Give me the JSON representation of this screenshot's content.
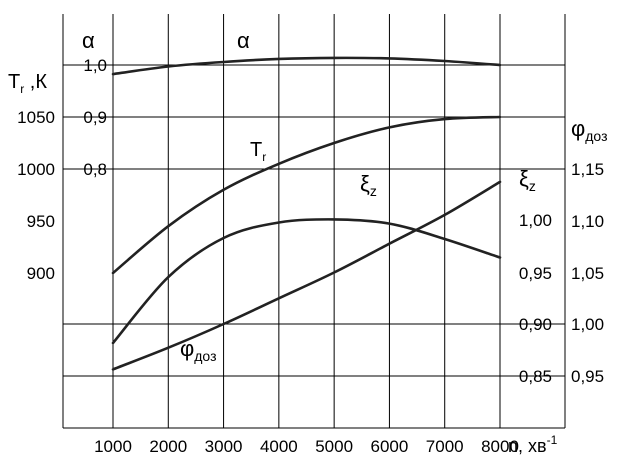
{
  "chart_data": {
    "type": "line",
    "xlabel": "n, хв",
    "xlabel_sup": "-1",
    "x_ticks": [
      "1000",
      "2000",
      "3000",
      "4000",
      "5000",
      "6000",
      "7000",
      "8000"
    ],
    "xlim": [
      0,
      8000
    ],
    "axes": {
      "Tr_label": "T",
      "Tr_label_sub": "r",
      "Tr_label_suffix": " ,К",
      "Tr_ticks": [
        "1050",
        "1000",
        "950",
        "900"
      ],
      "alpha_label": "α",
      "alpha_ticks": [
        "1,0",
        "0,9",
        "0,8"
      ],
      "xi_label": "ξ",
      "xi_label_sub": "z",
      "xi_ticks": [
        "1,00",
        "0,95",
        "0,90",
        "0,85"
      ],
      "phi_label": "φ",
      "phi_label_sub": "доз",
      "phi_ticks": [
        "1,15",
        "1,10",
        "1,05",
        "1,00",
        "0,95"
      ]
    },
    "series": [
      {
        "name": "α",
        "label_text": "α",
        "label_sub": "",
        "axis": "alpha",
        "x": [
          1000,
          2000,
          3000,
          4000,
          5000,
          6000,
          7000,
          8000
        ],
        "y": [
          0.982,
          0.997,
          1.006,
          1.012,
          1.014,
          1.013,
          1.008,
          1.0
        ]
      },
      {
        "name": "Tr",
        "label_text": "T",
        "label_sub": "r",
        "axis": "Tr",
        "x": [
          1000,
          2000,
          3000,
          4000,
          5000,
          6000,
          7000,
          8000
        ],
        "y": [
          900,
          945,
          980,
          1005,
          1025,
          1040,
          1048,
          1050
        ]
      },
      {
        "name": "ξz",
        "label_text": "ξ",
        "label_sub": "z",
        "axis": "xi",
        "x": [
          1000,
          2000,
          3000,
          4000,
          5000,
          6000,
          7000,
          8000
        ],
        "y": [
          0.855,
          0.876,
          0.899,
          0.924,
          0.949,
          0.977,
          1.005,
          1.037
        ]
      },
      {
        "name": "φдоз",
        "label_text": "φ",
        "label_sub": "доз",
        "axis": "phi",
        "x": [
          1000,
          2000,
          3000,
          4000,
          5000,
          6000,
          7000,
          8000
        ],
        "y": [
          0.982,
          1.046,
          1.084,
          1.099,
          1.102,
          1.098,
          1.083,
          1.065
        ]
      }
    ],
    "grid": true
  }
}
